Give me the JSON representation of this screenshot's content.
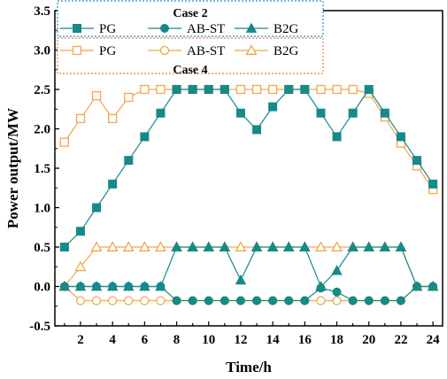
{
  "chart_data": {
    "type": "line",
    "xlabel": "Time/h",
    "ylabel": "Power output/MW",
    "xlim": [
      0.4,
      24.6
    ],
    "ylim": [
      -0.5,
      3.5
    ],
    "xticks": [
      "2",
      "4",
      "6",
      "8",
      "10",
      "12",
      "14",
      "16",
      "18",
      "20",
      "22",
      "24"
    ],
    "yticks": [
      "-0.5",
      "0.0",
      "0.5",
      "1.0",
      "1.5",
      "2.0",
      "2.5",
      "3.0",
      "3.5"
    ],
    "x": [
      1,
      2,
      3,
      4,
      5,
      6,
      7,
      8,
      9,
      10,
      11,
      12,
      13,
      14,
      15,
      16,
      17,
      18,
      19,
      20,
      21,
      22,
      23,
      24
    ],
    "legend": [
      {
        "title": "Case 2",
        "border_color": "#2a8fc0",
        "entries": [
          "PG",
          "AB-ST",
          "B2G"
        ]
      },
      {
        "title": "Case 4",
        "border_color": "#e8823a",
        "entries": [
          "PG",
          "AB-ST",
          "B2G"
        ]
      }
    ],
    "series": [
      {
        "case": "Case 2",
        "label": "PG",
        "marker": "square",
        "filled": true,
        "color": "#168a88",
        "values": [
          0.5,
          0.7,
          1.0,
          1.3,
          1.6,
          1.9,
          2.2,
          2.5,
          2.5,
          2.5,
          2.5,
          2.2,
          1.99,
          2.28,
          2.5,
          2.5,
          2.2,
          1.9,
          2.2,
          2.5,
          2.2,
          1.9,
          1.6,
          1.3
        ]
      },
      {
        "case": "Case 2",
        "label": "AB-ST",
        "marker": "circle",
        "filled": true,
        "color": "#168a88",
        "values": [
          0,
          0,
          0,
          0,
          0,
          0,
          0,
          -0.18,
          -0.18,
          -0.18,
          -0.18,
          -0.18,
          -0.18,
          -0.18,
          -0.18,
          -0.18,
          -0.02,
          -0.07,
          -0.18,
          -0.18,
          -0.18,
          -0.18,
          0,
          0
        ]
      },
      {
        "case": "Case 2",
        "label": "B2G",
        "marker": "triangle",
        "filled": true,
        "color": "#168a88",
        "values": [
          0,
          0,
          0,
          0,
          0,
          0,
          0,
          0.5,
          0.5,
          0.5,
          0.5,
          0.08,
          0.5,
          0.5,
          0.5,
          0.5,
          0,
          0.2,
          0.5,
          0.5,
          0.5,
          0.5,
          0,
          0
        ]
      },
      {
        "case": "Case 4",
        "label": "PG",
        "marker": "square",
        "filled": false,
        "color": "#f0a848",
        "values": [
          1.83,
          2.13,
          2.42,
          2.13,
          2.4,
          2.5,
          2.5,
          2.5,
          2.5,
          2.5,
          2.5,
          2.5,
          2.5,
          2.5,
          2.5,
          2.5,
          2.5,
          2.5,
          2.5,
          2.45,
          2.15,
          1.82,
          1.53,
          1.23
        ]
      },
      {
        "case": "Case 4",
        "label": "AB-ST",
        "marker": "circle",
        "filled": false,
        "color": "#f0a848",
        "values": [
          0,
          -0.18,
          -0.18,
          -0.18,
          -0.18,
          -0.18,
          -0.18,
          -0.18,
          -0.18,
          -0.18,
          -0.18,
          -0.18,
          -0.18,
          -0.18,
          -0.18,
          -0.18,
          -0.18,
          -0.18,
          -0.18,
          -0.18,
          -0.18,
          -0.18,
          0,
          0
        ]
      },
      {
        "case": "Case 4",
        "label": "B2G",
        "marker": "triangle",
        "filled": false,
        "color": "#f0a848",
        "values": [
          0,
          0.25,
          0.5,
          0.5,
          0.5,
          0.5,
          0.5,
          0.5,
          0.5,
          0.5,
          0.5,
          0.5,
          0.5,
          0.5,
          0.5,
          0.5,
          0.5,
          0.5,
          0.5,
          0.5,
          0.5,
          0.5,
          0,
          0
        ]
      }
    ]
  }
}
